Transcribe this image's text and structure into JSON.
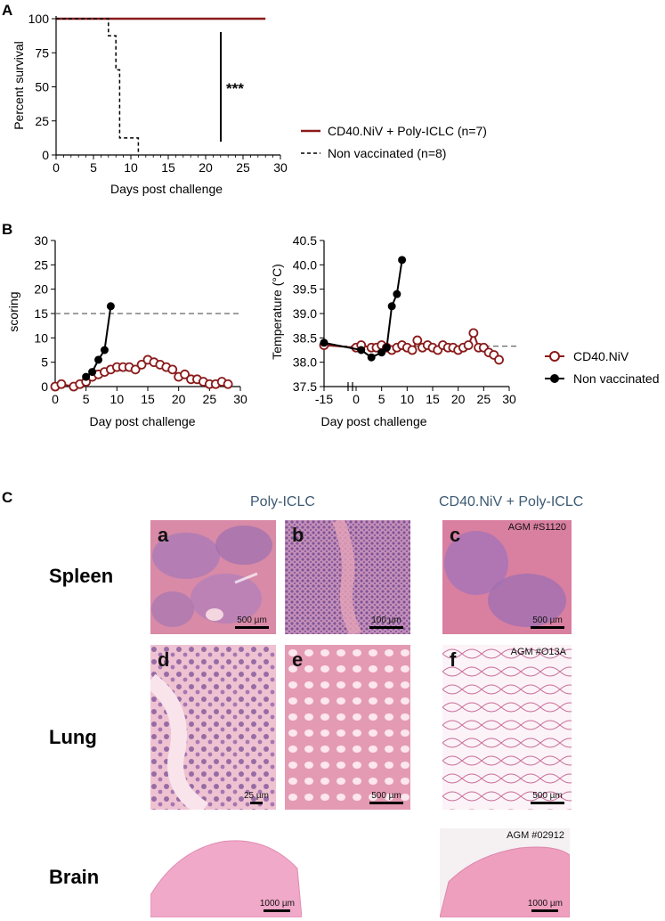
{
  "panels": {
    "a": "A",
    "b": "B",
    "c": "C"
  },
  "chart_data": [
    {
      "type": "line",
      "xlabel": "Days post challenge",
      "ylabel": "Percent survival",
      "xlim": [
        0,
        30
      ],
      "ylim": [
        0,
        100
      ],
      "xticks": [
        "0",
        "5",
        "10",
        "15",
        "20",
        "25",
        "30"
      ],
      "yticks": [
        "0",
        "25",
        "50",
        "75",
        "100"
      ],
      "series": [
        {
          "name": "CD40.NiV + Poly-ICLC (n=7)",
          "color": "#8b1a1a",
          "style": "solid",
          "x": [
            0,
            28
          ],
          "y": [
            100,
            100
          ]
        },
        {
          "name": "Non vaccinated (n=8)",
          "color": "#000000",
          "style": "dashed",
          "x": [
            0,
            7,
            7,
            8,
            8,
            8.5,
            8.5,
            9,
            9,
            11,
            11
          ],
          "y": [
            100,
            100,
            87.5,
            87.5,
            62.5,
            62.5,
            12.5,
            12.5,
            12.5,
            12.5,
            0
          ]
        }
      ],
      "annotation": "***",
      "legend": "right"
    },
    {
      "type": "line",
      "xlabel": "Day post challenge",
      "ylabel": "scoring",
      "xlim": [
        0,
        30
      ],
      "ylim": [
        0,
        30
      ],
      "xticks": [
        "0",
        "5",
        "10",
        "15",
        "20",
        "25",
        "30"
      ],
      "yticks": [
        "0",
        "5",
        "10",
        "15",
        "20",
        "25",
        "30"
      ],
      "threshold": 15,
      "series": [
        {
          "name": "CD40.NiV",
          "color": "#8b1a1a",
          "x": [
            0,
            1,
            3,
            4,
            5,
            6,
            7,
            8,
            9,
            10,
            11,
            12,
            13,
            14,
            15,
            16,
            17,
            18,
            19,
            20,
            21,
            22,
            23,
            24,
            25,
            26,
            27,
            28
          ],
          "y": [
            0,
            0.5,
            0,
            0.5,
            1,
            2,
            2.5,
            3,
            3.5,
            4,
            4,
            4,
            3.5,
            4.5,
            5.5,
            5,
            4.5,
            4,
            3.5,
            2,
            2.5,
            1.5,
            1.5,
            1,
            0.5,
            0.5,
            1,
            0.5
          ]
        },
        {
          "name": "Non vaccinated",
          "color": "#000000",
          "x": [
            5,
            6,
            7,
            8,
            9
          ],
          "y": [
            2,
            3,
            5.5,
            7.5,
            16.5
          ]
        }
      ]
    },
    {
      "type": "line",
      "xlabel": "Day post challenge",
      "ylabel": "Temperature (°C)",
      "xlim": [
        -15,
        30
      ],
      "ylim": [
        37.5,
        40.5
      ],
      "xticks": [
        "-15",
        "0",
        "5",
        "10",
        "15",
        "20",
        "25",
        "30"
      ],
      "yticks": [
        "37.5",
        "38.0",
        "38.5",
        "39.0",
        "39.5",
        "40.0",
        "40.5"
      ],
      "threshold": 38.33,
      "series": [
        {
          "name": "CD40.NiV",
          "color": "#8b1a1a",
          "x": [
            -15,
            0,
            1,
            3,
            4,
            5,
            6,
            7,
            8,
            9,
            10,
            11,
            12,
            13,
            14,
            15,
            16,
            17,
            18,
            19,
            20,
            21,
            22,
            23,
            24,
            25,
            26,
            27,
            28
          ],
          "y": [
            38.35,
            38.3,
            38.35,
            38.3,
            38.3,
            38.35,
            38.3,
            38.25,
            38.3,
            38.35,
            38.3,
            38.25,
            38.45,
            38.3,
            38.35,
            38.3,
            38.25,
            38.35,
            38.3,
            38.3,
            38.25,
            38.3,
            38.35,
            38.6,
            38.3,
            38.3,
            38.2,
            38.15,
            38.05
          ]
        },
        {
          "name": "Non vaccinated",
          "color": "#000000",
          "x": [
            -15,
            1,
            3,
            5,
            6,
            7,
            8,
            9
          ],
          "y": [
            38.4,
            38.25,
            38.1,
            38.2,
            38.3,
            39.15,
            39.4,
            40.1
          ]
        }
      ],
      "legend": "right"
    }
  ],
  "panel_c": {
    "col_titles": [
      "Poly-ICLC",
      "CD40.NiV + Poly-ICLC"
    ],
    "rows": [
      "Spleen",
      "Lung",
      "Brain"
    ],
    "images": [
      {
        "letter": "a",
        "scale": "500 µm",
        "agm": ""
      },
      {
        "letter": "b",
        "scale": "100 µm",
        "agm": ""
      },
      {
        "letter": "c",
        "scale": "500 µm",
        "agm": "AGM #S1120"
      },
      {
        "letter": "d",
        "scale": "25 µm",
        "agm": ""
      },
      {
        "letter": "e",
        "scale": "500 µm",
        "agm": ""
      },
      {
        "letter": "f",
        "scale": "500 µm",
        "agm": "AGM #O13A"
      },
      {
        "letter": "",
        "scale": "1000 µm",
        "agm": ""
      },
      {
        "letter": "",
        "scale": "1000 µm",
        "agm": "AGM #02912"
      }
    ]
  }
}
